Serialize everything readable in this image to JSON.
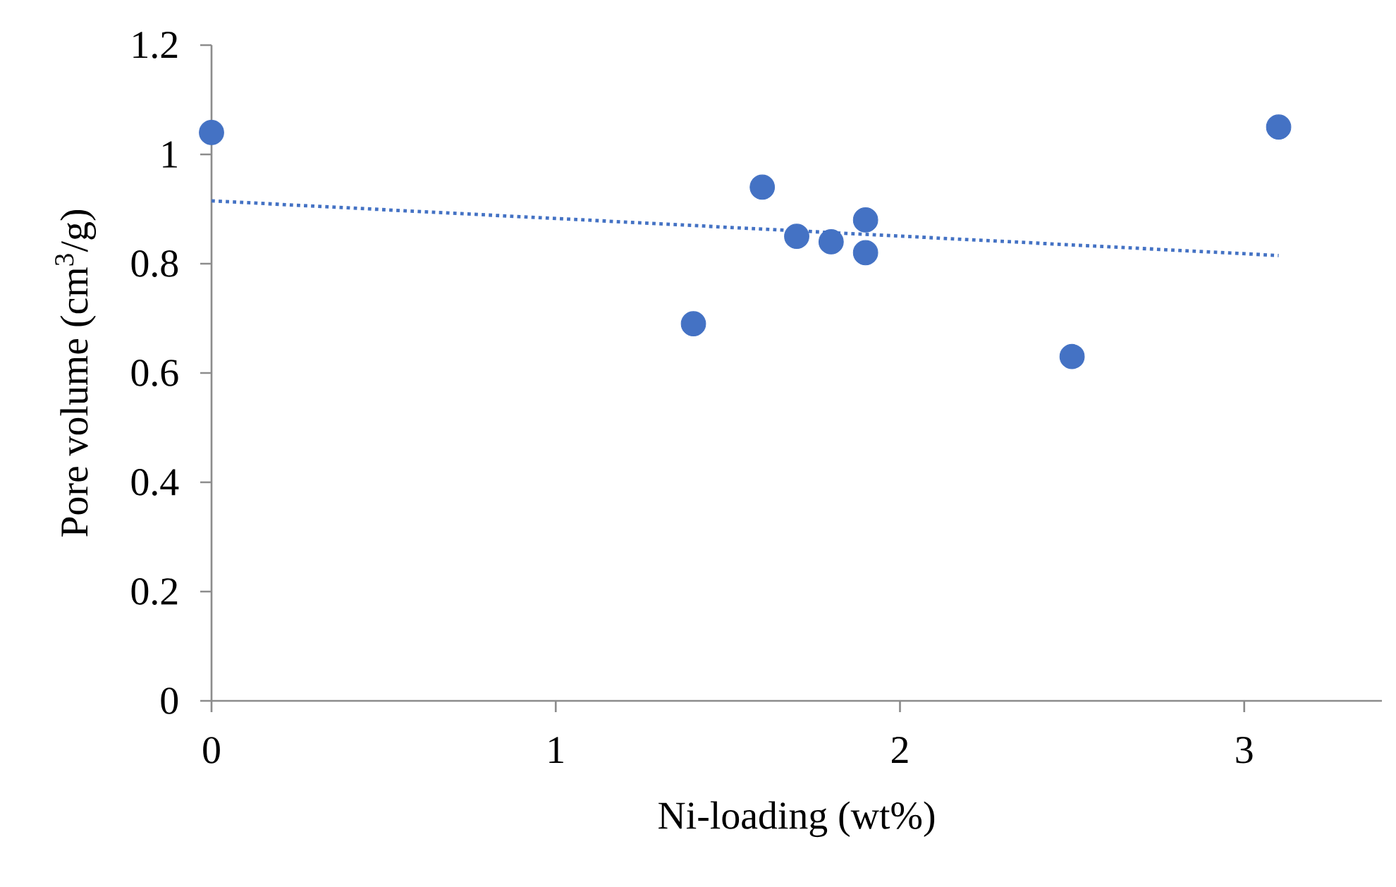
{
  "chart_data": {
    "type": "scatter",
    "xlabel": "Ni-loading  (wt%)",
    "ylabel": "Pore volume (cm$^{3}$/g)",
    "xlim": [
      0,
      3.4
    ],
    "ylim": [
      0,
      1.2
    ],
    "xticks": [
      0,
      1,
      2,
      3
    ],
    "yticks": [
      0,
      0.2,
      0.4,
      0.6,
      0.8,
      1,
      1.2
    ],
    "grid": false,
    "marker": "circle",
    "series": [
      {
        "color": "#4472c4",
        "x": [
          0,
          1.4,
          1.6,
          1.7,
          1.8,
          1.9,
          1.9,
          2.5,
          3.1
        ],
        "values": [
          1.04,
          0.69,
          0.94,
          0.85,
          0.84,
          0.88,
          0.82,
          0.63,
          1.05
        ]
      },
      {
        "type": "line",
        "color": "#4472c4",
        "line_style": "dotted",
        "marker": "none",
        "x": [
          0,
          3.1
        ],
        "values": [
          0.915,
          0.815
        ]
      }
    ]
  }
}
